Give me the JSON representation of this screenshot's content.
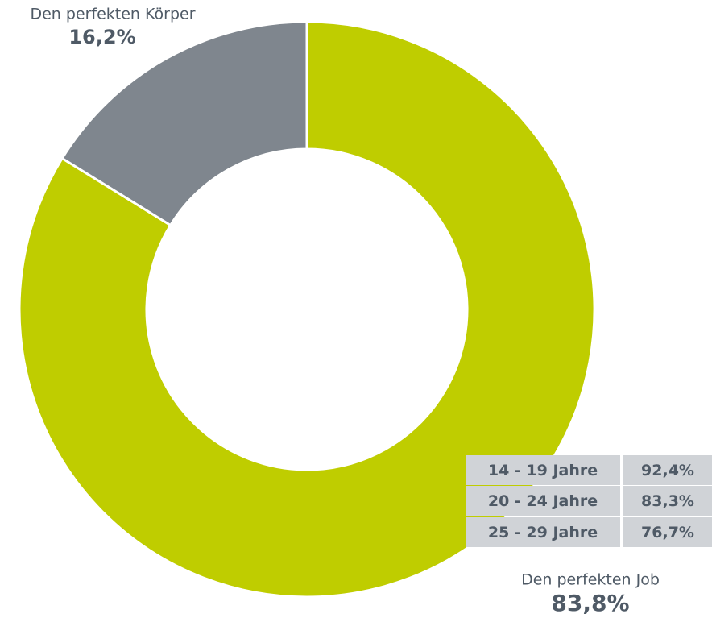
{
  "chart_data": {
    "type": "pie",
    "categories": [
      "Den perfekten Job",
      "Den perfekten Körper"
    ],
    "values": [
      83.8,
      16.2
    ],
    "value_labels": [
      "83,8%",
      "16,2%"
    ],
    "colors": [
      "#bfcd00",
      "#7f868e"
    ]
  },
  "table": {
    "rows": [
      [
        "14 - 19 Jahre",
        "92,4%"
      ],
      [
        "20 - 24 Jahre",
        "83,3%"
      ],
      [
        "25 - 29 Jahre",
        "76,7%"
      ]
    ]
  }
}
